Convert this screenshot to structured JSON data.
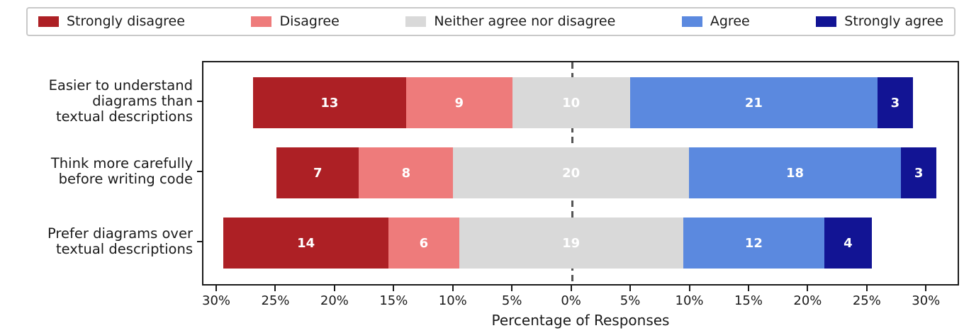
{
  "legend": {
    "items": [
      {
        "label": "Strongly disagree",
        "color": "#ad2025"
      },
      {
        "label": "Disagree",
        "color": "#ee7b7b"
      },
      {
        "label": "Neither agree nor disagree",
        "color": "#d9d9d9"
      },
      {
        "label": "Agree",
        "color": "#5b89df"
      },
      {
        "label": "Strongly agree",
        "color": "#121494"
      }
    ]
  },
  "chart_data": {
    "type": "bar",
    "subtype": "diverging-stacked-horizontal-likert",
    "title": "",
    "xlabel": "Percentage of Responses",
    "ylabel": "",
    "categories": [
      "Easier to understand diagrams than textual descriptions",
      "Think more carefully before writing code",
      "Prefer diagrams over textual descriptions"
    ],
    "categories_lines": [
      [
        "Easier to understand",
        "diagrams than",
        "textual descriptions"
      ],
      [
        "Think more carefully",
        "before writing code"
      ],
      [
        "Prefer diagrams over",
        "textual descriptions"
      ]
    ],
    "series": [
      {
        "name": "Strongly disagree",
        "color": "#ad2025",
        "values": [
          13,
          7,
          14
        ]
      },
      {
        "name": "Disagree",
        "color": "#ee7b7b",
        "values": [
          9,
          8,
          6
        ]
      },
      {
        "name": "Neither agree nor disagree",
        "color": "#d9d9d9",
        "values": [
          10,
          20,
          19
        ]
      },
      {
        "name": "Agree",
        "color": "#5b89df",
        "values": [
          21,
          18,
          12
        ]
      },
      {
        "name": "Strongly agree",
        "color": "#121494",
        "values": [
          3,
          3,
          4
        ]
      }
    ],
    "x_tick_values": [
      -30,
      -25,
      -20,
      -15,
      -10,
      -5,
      0,
      5,
      10,
      15,
      20,
      25,
      30
    ],
    "x_tick_labels": [
      "30%",
      "25%",
      "20%",
      "15%",
      "10%",
      "5%",
      "0%",
      "5%",
      "10%",
      "15%",
      "20%",
      "25%",
      "30%"
    ],
    "xlim": [
      -31.2,
      32.8
    ],
    "alignment": "neutral category centered on zero",
    "zero_line": "dashed",
    "legend_position": "top",
    "value_labels": "white bold count inside each segment"
  }
}
